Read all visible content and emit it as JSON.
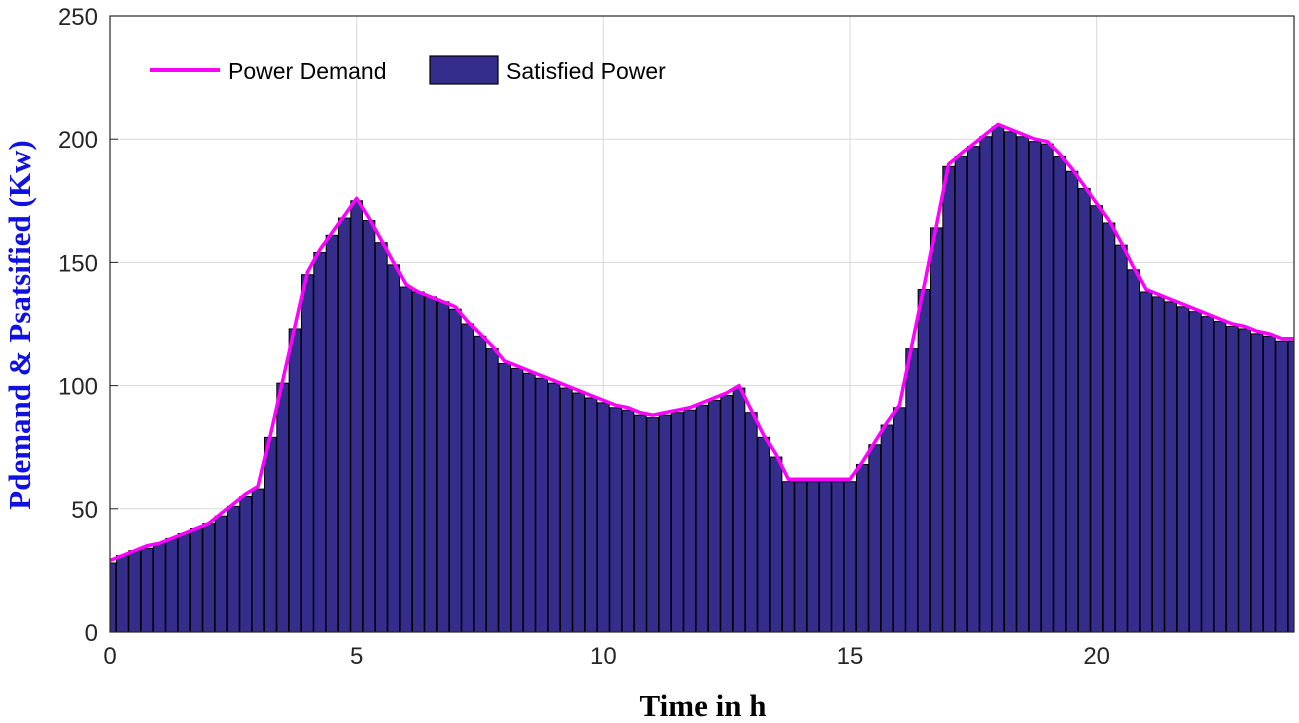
{
  "chart_data": {
    "type": "bar",
    "xlabel": "Time in h",
    "ylabel": "Pdemand & Psatsified (Kw)",
    "xlim": [
      0,
      24
    ],
    "ylim": [
      0,
      250
    ],
    "xticks": [
      "0",
      "5",
      "10",
      "15",
      "20"
    ],
    "yticks": [
      "0",
      "50",
      "100",
      "150",
      "200",
      "250"
    ],
    "grid": true,
    "legend_position": "top-left",
    "colors": {
      "demand": "#ff00ff",
      "satisfied": "#342d8c",
      "grid": "#d9d9d9"
    },
    "x": [
      0,
      0.25,
      0.5,
      0.75,
      1,
      1.25,
      1.5,
      1.75,
      2,
      2.25,
      2.5,
      2.75,
      3,
      3.25,
      3.5,
      3.75,
      4,
      4.25,
      4.5,
      4.75,
      5,
      5.25,
      5.5,
      5.75,
      6,
      6.25,
      6.5,
      6.75,
      7,
      7.25,
      7.5,
      7.75,
      8,
      8.25,
      8.5,
      8.75,
      9,
      9.25,
      9.5,
      9.75,
      10,
      10.25,
      10.5,
      10.75,
      11,
      11.25,
      11.5,
      11.75,
      12,
      12.25,
      12.5,
      12.75,
      13,
      13.25,
      13.5,
      13.75,
      14,
      14.25,
      14.5,
      14.75,
      15,
      15.25,
      15.5,
      15.75,
      16,
      16.25,
      16.5,
      16.75,
      17,
      17.25,
      17.5,
      17.75,
      18,
      18.25,
      18.5,
      18.75,
      19,
      19.25,
      19.5,
      19.75,
      20,
      20.25,
      20.5,
      20.75,
      21,
      21.25,
      21.5,
      21.75,
      22,
      22.25,
      22.5,
      22.75,
      23,
      23.25,
      23.5,
      23.75,
      24
    ],
    "series": [
      {
        "name": "Power Demand",
        "type": "line",
        "values": [
          29,
          31,
          33,
          35,
          36,
          38,
          40,
          42,
          44,
          48,
          52,
          56,
          59,
          80,
          102,
          124,
          146,
          155,
          162,
          169,
          176,
          168,
          159,
          150,
          141,
          138,
          136,
          134,
          132,
          126,
          121,
          116,
          110,
          108,
          106,
          104,
          102,
          100,
          98,
          96,
          94,
          92,
          91,
          89,
          88,
          89,
          90,
          91,
          93,
          95,
          97,
          100,
          90,
          80,
          72,
          62,
          62,
          62,
          62,
          62,
          62,
          69,
          77,
          85,
          92,
          116,
          140,
          165,
          190,
          194,
          198,
          202,
          206,
          204,
          202,
          200,
          199,
          194,
          188,
          181,
          174,
          167,
          158,
          148,
          139,
          137,
          135,
          133,
          131,
          129,
          127,
          125,
          124,
          122,
          121,
          119,
          119
        ],
        "color": "#ff00ff"
      },
      {
        "name": "Satisfied Power",
        "type": "bar",
        "values": [
          28,
          31,
          33,
          34,
          36,
          38,
          40,
          42,
          44,
          47,
          51,
          55,
          58,
          79,
          101,
          123,
          145,
          154,
          161,
          168,
          175,
          167,
          158,
          149,
          140,
          138,
          136,
          134,
          131,
          125,
          120,
          115,
          109,
          107,
          105,
          103,
          101,
          99,
          97,
          95,
          93,
          91,
          90,
          88,
          87,
          88,
          89,
          90,
          92,
          94,
          96,
          99,
          89,
          79,
          71,
          61,
          61,
          61,
          61,
          61,
          61,
          68,
          76,
          84,
          91,
          115,
          139,
          164,
          189,
          193,
          197,
          201,
          205,
          203,
          201,
          199,
          198,
          193,
          187,
          180,
          173,
          166,
          157,
          147,
          138,
          136,
          134,
          132,
          130,
          128,
          126,
          124,
          123,
          121,
          120,
          118,
          118
        ],
        "color": "#342d8c"
      }
    ]
  }
}
